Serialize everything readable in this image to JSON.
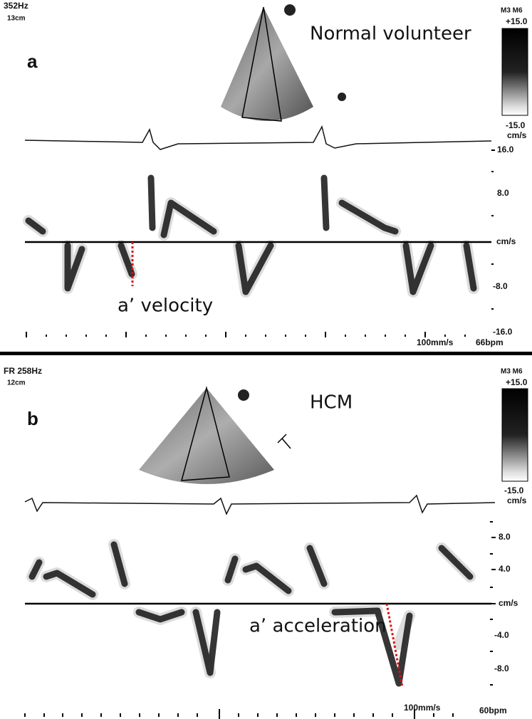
{
  "panels": [
    {
      "frame_rate": "352Hz",
      "depth": "13cm",
      "label": "a",
      "title": "Normal volunteer",
      "colorbar": {
        "mode": "M3 M6",
        "max": "+15.0",
        "min": "-15.0",
        "unit": "cm/s"
      },
      "scale_labels": [
        "16.0",
        "8.0",
        "cm/s",
        "-8.0",
        "-16.0"
      ],
      "sweep": "100mm/s",
      "heart_rate": "66bpm",
      "annotation": "a’ velocity"
    },
    {
      "frame_rate": "FR 258Hz",
      "depth": "12cm",
      "label": "b",
      "title": "HCM",
      "colorbar": {
        "mode": "M3 M6",
        "max": "+15.0",
        "min": "-15.0",
        "unit": "cm/s"
      },
      "scale_labels": [
        "8.0",
        "4.0",
        "cm/s",
        "-4.0",
        "-8.0"
      ],
      "sweep": "100mm/s",
      "heart_rate": "60bpm",
      "annotation": "a’ acceleration"
    }
  ]
}
